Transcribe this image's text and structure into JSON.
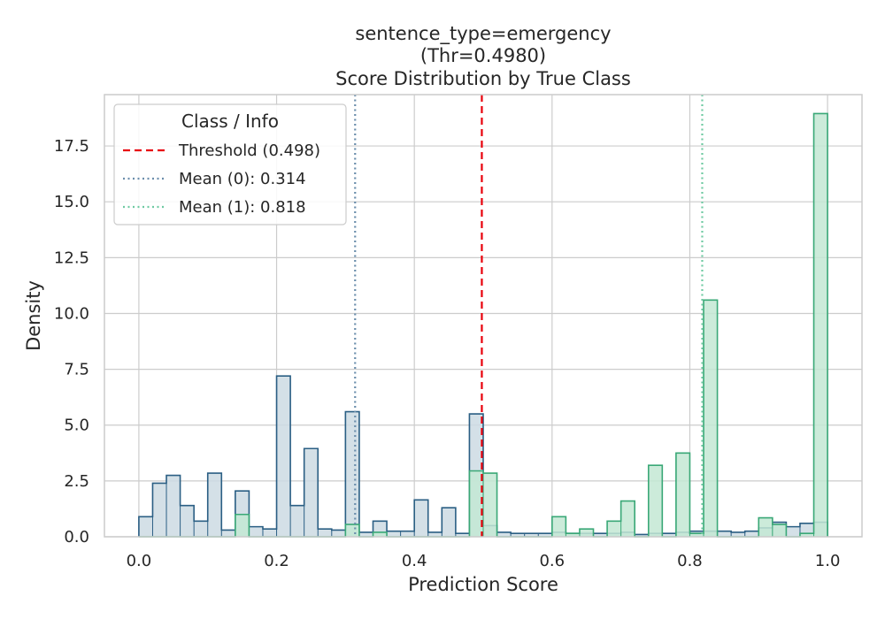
{
  "chart_data": {
    "type": "histogram",
    "title_lines": [
      "sentence_type=emergency",
      "(Thr=0.4980)",
      "Score Distribution by True Class"
    ],
    "xlabel": "Prediction Score",
    "ylabel": "Density",
    "xlim": [
      -0.05,
      1.05
    ],
    "ylim": [
      0,
      19.8
    ],
    "xticks": [
      0.0,
      0.2,
      0.4,
      0.6,
      0.8,
      1.0
    ],
    "xtick_labels": [
      "0.0",
      "0.2",
      "0.4",
      "0.6",
      "0.8",
      "1.0"
    ],
    "yticks": [
      0.0,
      2.5,
      5.0,
      7.5,
      10.0,
      12.5,
      15.0,
      17.5
    ],
    "ytick_labels": [
      "0.0",
      "2.5",
      "5.0",
      "7.5",
      "10.0",
      "12.5",
      "15.0",
      "17.5"
    ],
    "grid": true,
    "bin_edges": [
      0.0,
      0.02,
      0.04,
      0.06,
      0.08,
      0.1,
      0.12,
      0.14,
      0.16,
      0.18,
      0.2,
      0.22,
      0.24,
      0.26,
      0.28,
      0.3,
      0.32,
      0.34,
      0.36,
      0.38,
      0.4,
      0.42,
      0.44,
      0.46,
      0.48,
      0.5,
      0.52,
      0.54,
      0.56,
      0.58,
      0.6,
      0.62,
      0.64,
      0.66,
      0.68,
      0.7,
      0.72,
      0.74,
      0.76,
      0.78,
      0.8,
      0.82,
      0.84,
      0.86,
      0.88,
      0.9,
      0.92,
      0.94,
      0.96,
      0.98,
      1.0
    ],
    "series": [
      {
        "label": "0",
        "color": "#2b5f84",
        "fill": "#ccdae3",
        "values": [
          0.9,
          2.4,
          2.75,
          1.4,
          0.7,
          2.85,
          0.3,
          2.05,
          0.45,
          0.35,
          7.2,
          1.4,
          3.95,
          0.35,
          0.3,
          5.6,
          0.2,
          0.7,
          0.25,
          0.25,
          1.65,
          0.2,
          1.3,
          0.15,
          5.5,
          0.5,
          0.2,
          0.15,
          0.15,
          0.15,
          0.2,
          0.15,
          0.15,
          0.15,
          0.15,
          0.2,
          0.1,
          0.15,
          0.15,
          0.2,
          0.25,
          0.25,
          0.25,
          0.2,
          0.25,
          0.4,
          0.65,
          0.45,
          0.6,
          0.65
        ]
      },
      {
        "label": "1",
        "color": "#3aa877",
        "fill": "#c3e8d4",
        "values": [
          0,
          0,
          0,
          0,
          0,
          0,
          0,
          1.0,
          0,
          0,
          0,
          0,
          0,
          0,
          0,
          0.55,
          0,
          0.2,
          0,
          0,
          0,
          0,
          0,
          0,
          2.95,
          2.85,
          0,
          0,
          0,
          0,
          0.9,
          0.15,
          0.35,
          0,
          0.7,
          1.6,
          0,
          3.2,
          0,
          3.75,
          0.15,
          10.6,
          0,
          0,
          0,
          0.85,
          0.55,
          0,
          0.15,
          18.95
        ]
      }
    ],
    "reference_lines": [
      {
        "x": 0.498,
        "color": "#e8000b",
        "style": "dashed"
      },
      {
        "x": 0.314,
        "color": "#6b8eac",
        "style": "dotted"
      },
      {
        "x": 0.818,
        "color": "#6fcaa2",
        "style": "dotted"
      }
    ],
    "legend": {
      "position": "top-left",
      "title": "Class / Info",
      "entries": [
        {
          "label": "Threshold (0.498)",
          "color": "#e8000b",
          "style": "dashed"
        },
        {
          "label": "Mean (0): 0.314",
          "color": "#6b8eac",
          "style": "dotted"
        },
        {
          "label": "Mean (1): 0.818",
          "color": "#6fcaa2",
          "style": "dotted"
        }
      ]
    }
  }
}
